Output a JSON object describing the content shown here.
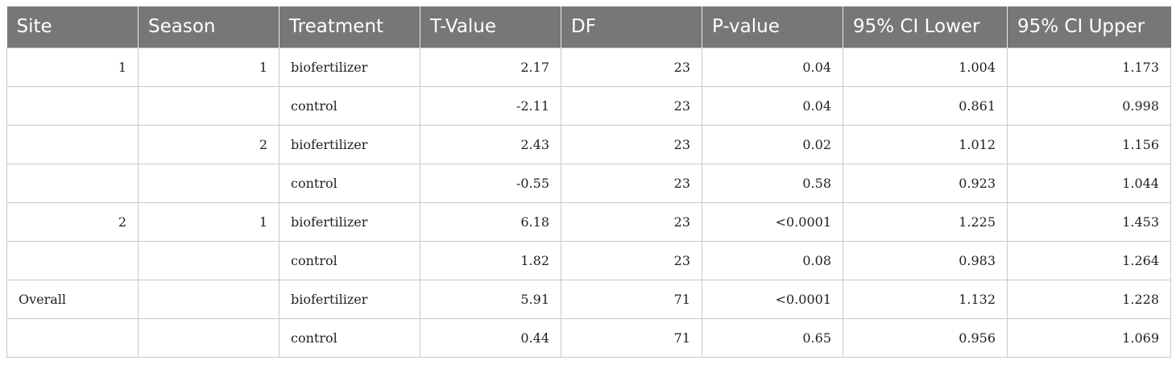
{
  "table": {
    "headers": [
      "Site",
      "Season",
      "Treatment",
      "T-Value",
      "DF",
      "P-value",
      "95% CI Lower",
      "95% CI Upper"
    ],
    "rows": [
      [
        "1",
        "1",
        "biofertilizer",
        "2.17",
        "23",
        "0.04",
        "1.004",
        "1.173"
      ],
      [
        "",
        "",
        "control",
        "-2.11",
        "23",
        "0.04",
        "0.861",
        "0.998"
      ],
      [
        "",
        "2",
        "biofertilizer",
        "2.43",
        "23",
        "0.02",
        "1.012",
        "1.156"
      ],
      [
        "",
        "",
        "control",
        "-0.55",
        "23",
        "0.58",
        "0.923",
        "1.044"
      ],
      [
        "2",
        "1",
        "biofertilizer",
        "6.18",
        "23",
        "<0.0001",
        "1.225",
        "1.453"
      ],
      [
        "",
        "",
        "control",
        "1.82",
        "23",
        "0.08",
        "0.983",
        "1.264"
      ],
      [
        "Overall",
        "",
        "biofertilizer",
        "5.91",
        "71",
        "<0.0001",
        "1.132",
        "1.228"
      ],
      [
        "",
        "",
        "control",
        "0.44",
        "71",
        "0.65",
        "0.956",
        "1.069"
      ]
    ]
  }
}
